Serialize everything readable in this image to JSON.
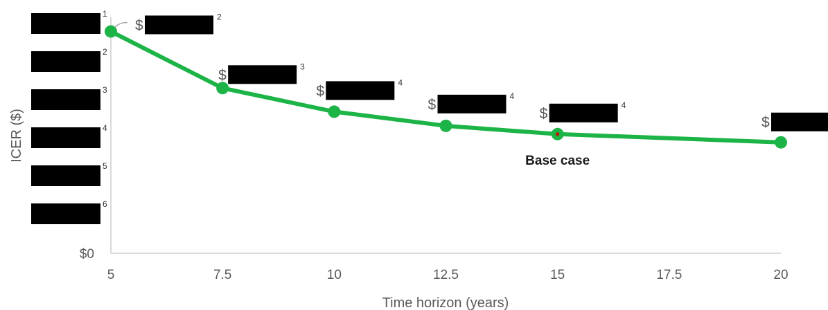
{
  "chart_data": {
    "type": "line",
    "title": "",
    "xlabel": "Time horizon (years)",
    "ylabel": "ICER ($)",
    "x_ticks": [
      "5",
      "7.5",
      "10",
      "12.5",
      "15",
      "17.5",
      "20"
    ],
    "xlim": [
      5,
      20
    ],
    "y_tick_labels": [
      "",
      "",
      "",
      "",
      "",
      "",
      "$0"
    ],
    "y_tick_superscripts": [
      "1",
      "2",
      "3",
      "4",
      "5",
      "6",
      ""
    ],
    "y_ticks_redacted": true,
    "ylim": [
      0,
      1
    ],
    "grid": false,
    "legend": "none",
    "series": [
      {
        "x": [
          5,
          7.5,
          10,
          12.5,
          15,
          20
        ],
        "y": [
          0.94,
          0.7,
          0.6,
          0.54,
          0.505,
          0.47
        ],
        "labels_redacted": true,
        "label_prefix": "$",
        "label_superscripts": [
          "2",
          "3",
          "4",
          "4",
          "4",
          ""
        ],
        "color": "#1db447"
      }
    ],
    "annotations": [
      {
        "text": "Base case",
        "x": 15
      }
    ],
    "redaction_color": "#000000",
    "highlight_point_color": "#cc0000"
  }
}
